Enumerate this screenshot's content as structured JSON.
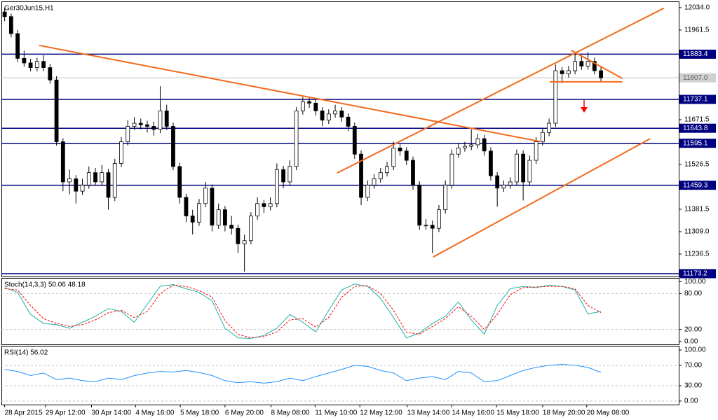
{
  "chart_data": [
    {
      "type": "candlestick",
      "title": "Ger30Jun15,H1",
      "xlim": [
        -0.5,
        104
      ],
      "xticks": [
        {
          "value": 0,
          "label": "28 Apr 2015"
        },
        {
          "value": 6.3,
          "label": "29 Apr 12:00"
        },
        {
          "value": 13.4,
          "label": "30 Apr 14:00"
        },
        {
          "value": 20.2,
          "label": "4 May 16:00"
        },
        {
          "value": 27.1,
          "label": "5 May 18:00"
        },
        {
          "value": 34.0,
          "label": "6 May 20:00"
        },
        {
          "value": 41.1,
          "label": "8 May 08:00"
        },
        {
          "value": 47.9,
          "label": "11 May 10:00"
        },
        {
          "value": 54.8,
          "label": "12 May 12:00"
        },
        {
          "value": 62.1,
          "label": "13 May 14:00"
        },
        {
          "value": 69.0,
          "label": "14 May 16:00"
        },
        {
          "value": 75.9,
          "label": "15 May 18:00"
        },
        {
          "value": 83.0,
          "label": "18 May 20:00"
        },
        {
          "value": 89.8,
          "label": "20 May 08:00"
        }
      ],
      "ylim": [
        11164,
        12052
      ],
      "yticks": [
        {
          "value": 12034,
          "label": "12034.0"
        },
        11961.5,
        11671.5,
        11526.5,
        11381.5,
        {
          "value": 11309,
          "label": "11309.0"
        },
        11236.5
      ],
      "levels": [
        11883.4,
        11737.1,
        11643.8,
        11595.1,
        11459.3,
        11173.2
      ],
      "level_color": "#000080",
      "current_price": {
        "value": 11807,
        "label": "11807.0"
      },
      "up_color": "#ffffff",
      "down_color": "#000000",
      "trendline_color": "#f26a1b",
      "trendlines": [
        [
          [
            5.3,
            11912
          ],
          [
            82.6,
            11601
          ]
        ],
        [
          [
            51.3,
            11499
          ],
          [
            101.7,
            12032
          ]
        ],
        [
          [
            66.1,
            11227
          ],
          [
            99.6,
            11610
          ]
        ],
        [
          [
            87.4,
            11896
          ],
          [
            95.3,
            11805
          ]
        ],
        [
          [
            84.1,
            11794
          ],
          [
            95.3,
            11794
          ]
        ]
      ],
      "ohlc": [
        [
          12020,
          12034,
          11990,
          12005
        ],
        [
          12005,
          12015,
          11938,
          11950
        ],
        [
          11950,
          11962,
          11858,
          11870
        ],
        [
          11870,
          11895,
          11843,
          11855
        ],
        [
          11855,
          11868,
          11828,
          11840
        ],
        [
          11840,
          11872,
          11828,
          11860
        ],
        [
          11860,
          11880,
          11828,
          11840
        ],
        [
          11840,
          11852,
          11788,
          11800
        ],
        [
          11800,
          11812,
          11588,
          11600
        ],
        [
          11600,
          11612,
          11440,
          11470
        ],
        [
          11470,
          11510,
          11430,
          11480
        ],
        [
          11480,
          11492,
          11400,
          11440
        ],
        [
          11440,
          11480,
          11428,
          11460
        ],
        [
          11460,
          11520,
          11448,
          11500
        ],
        [
          11500,
          11515,
          11458,
          11470
        ],
        [
          11470,
          11525,
          11458,
          11500
        ],
        [
          11500,
          11512,
          11380,
          11420
        ],
        [
          11420,
          11545,
          11408,
          11530
        ],
        [
          11530,
          11615,
          11518,
          11600
        ],
        [
          11600,
          11670,
          11588,
          11650
        ],
        [
          11650,
          11680,
          11638,
          11660
        ],
        [
          11660,
          11675,
          11640,
          11655
        ],
        [
          11655,
          11668,
          11630,
          11650
        ],
        [
          11650,
          11665,
          11620,
          11640
        ],
        [
          11640,
          11780,
          11628,
          11700
        ],
        [
          11700,
          11720,
          11638,
          11650
        ],
        [
          11650,
          11662,
          11508,
          11520
        ],
        [
          11520,
          11532,
          11400,
          11420
        ],
        [
          11420,
          11432,
          11340,
          11360
        ],
        [
          11360,
          11380,
          11300,
          11340
        ],
        [
          11340,
          11415,
          11328,
          11400
        ],
        [
          11400,
          11470,
          11388,
          11450
        ],
        [
          11450,
          11462,
          11310,
          11330
        ],
        [
          11330,
          11400,
          11318,
          11380
        ],
        [
          11380,
          11392,
          11310,
          11330
        ],
        [
          11330,
          11360,
          11300,
          11320
        ],
        [
          11320,
          11332,
          11240,
          11270
        ],
        [
          11270,
          11300,
          11180,
          11280
        ],
        [
          11280,
          11372,
          11268,
          11360
        ],
        [
          11360,
          11420,
          11348,
          11400
        ],
        [
          11400,
          11412,
          11370,
          11390
        ],
        [
          11390,
          11420,
          11378,
          11400
        ],
        [
          11400,
          11530,
          11388,
          11510
        ],
        [
          11510,
          11522,
          11450,
          11470
        ],
        [
          11470,
          11540,
          11458,
          11520
        ],
        [
          11520,
          11712,
          11508,
          11700
        ],
        [
          11700,
          11745,
          11688,
          11730
        ],
        [
          11730,
          11742,
          11710,
          11725
        ],
        [
          11725,
          11737,
          11685,
          11700
        ],
        [
          11700,
          11712,
          11650,
          11670
        ],
        [
          11670,
          11705,
          11658,
          11690
        ],
        [
          11690,
          11720,
          11678,
          11700
        ],
        [
          11700,
          11712,
          11665,
          11680
        ],
        [
          11680,
          11692,
          11635,
          11650
        ],
        [
          11650,
          11662,
          11545,
          11560
        ],
        [
          11560,
          11572,
          11395,
          11420
        ],
        [
          11420,
          11475,
          11408,
          11460
        ],
        [
          11460,
          11495,
          11448,
          11480
        ],
        [
          11480,
          11515,
          11468,
          11500
        ],
        [
          11500,
          11535,
          11488,
          11520
        ],
        [
          11520,
          11600,
          11508,
          11580
        ],
        [
          11580,
          11592,
          11555,
          11570
        ],
        [
          11570,
          11582,
          11525,
          11540
        ],
        [
          11540,
          11552,
          11445,
          11460
        ],
        [
          11460,
          11472,
          11315,
          11330
        ],
        [
          11330,
          11350,
          11315,
          11330
        ],
        [
          11330,
          11345,
          11240,
          11320
        ],
        [
          11320,
          11395,
          11308,
          11380
        ],
        [
          11380,
          11475,
          11368,
          11460
        ],
        [
          11460,
          11575,
          11448,
          11560
        ],
        [
          11560,
          11595,
          11548,
          11580
        ],
        [
          11580,
          11600,
          11568,
          11585
        ],
        [
          11585,
          11640,
          11573,
          11590
        ],
        [
          11590,
          11625,
          11578,
          11610
        ],
        [
          11610,
          11622,
          11555,
          11570
        ],
        [
          11570,
          11582,
          11475,
          11490
        ],
        [
          11490,
          11502,
          11390,
          11450
        ],
        [
          11450,
          11475,
          11438,
          11460
        ],
        [
          11460,
          11485,
          11448,
          11470
        ],
        [
          11470,
          11575,
          11458,
          11560
        ],
        [
          11560,
          11572,
          11410,
          11470
        ],
        [
          11470,
          11555,
          11458,
          11540
        ],
        [
          11540,
          11615,
          11528,
          11600
        ],
        [
          11600,
          11645,
          11588,
          11630
        ],
        [
          11630,
          11675,
          11618,
          11660
        ],
        [
          11660,
          11850,
          11648,
          11830
        ],
        [
          11830,
          11842,
          11790,
          11820
        ],
        [
          11820,
          11845,
          11808,
          11830
        ],
        [
          11830,
          11885,
          11818,
          11860
        ],
        [
          11860,
          11880,
          11833,
          11845
        ],
        [
          11845,
          11890,
          11833,
          11860
        ],
        [
          11860,
          11872,
          11818,
          11830
        ],
        [
          11830,
          11842,
          11795,
          11807
        ]
      ]
    },
    {
      "type": "line",
      "title": "Stoch(14,3,3) 50.06 48.18",
      "ylim": [
        -5,
        105
      ],
      "yticks": [
        {
          "value": 100,
          "label": "100.00"
        },
        {
          "value": 80,
          "label": "80.00"
        },
        {
          "value": 20,
          "label": "20.00"
        },
        {
          "value": 0,
          "label": "0.00"
        }
      ],
      "series": [
        {
          "color": "#20b2aa",
          "values": [
            90,
            82,
            45,
            30,
            28,
            22,
            32,
            42,
            55,
            50,
            32,
            62,
            92,
            95,
            88,
            82,
            68,
            22,
            6,
            5,
            10,
            22,
            45,
            32,
            16,
            52,
            86,
            96,
            92,
            72,
            40,
            6,
            14,
            30,
            42,
            66,
            36,
            12,
            60,
            88,
            92,
            90,
            94,
            92,
            86,
            46,
            50.06
          ]
        },
        {
          "color": "#ff0000",
          "dashed": true,
          "values": [
            88,
            86,
            60,
            38,
            30,
            25,
            28,
            36,
            48,
            52,
            40,
            50,
            80,
            94,
            92,
            85,
            74,
            35,
            12,
            6,
            8,
            16,
            36,
            38,
            24,
            40,
            74,
            92,
            93,
            80,
            52,
            15,
            12,
            25,
            38,
            58,
            42,
            20,
            45,
            78,
            90,
            91,
            92,
            92,
            88,
            60,
            48.18
          ]
        }
      ]
    },
    {
      "type": "line",
      "title": "RSI(14) 56.02",
      "ylim": [
        -7,
        107
      ],
      "yticks": [
        {
          "value": 100,
          "label": "100.00"
        },
        {
          "value": 70,
          "label": "70.00"
        },
        {
          "value": 30,
          "label": "30.00"
        },
        {
          "value": 0,
          "label": "0.00"
        }
      ],
      "series": [
        {
          "color": "#1e90ff",
          "values": [
            62,
            58,
            50,
            55,
            42,
            45,
            40,
            38,
            45,
            42,
            50,
            55,
            58,
            57,
            60,
            56,
            50,
            40,
            36,
            38,
            35,
            38,
            45,
            40,
            48,
            55,
            62,
            70,
            68,
            60,
            55,
            40,
            45,
            48,
            42,
            58,
            55,
            38,
            40,
            50,
            60,
            66,
            70,
            72,
            70,
            66,
            56.02
          ]
        }
      ]
    }
  ]
}
